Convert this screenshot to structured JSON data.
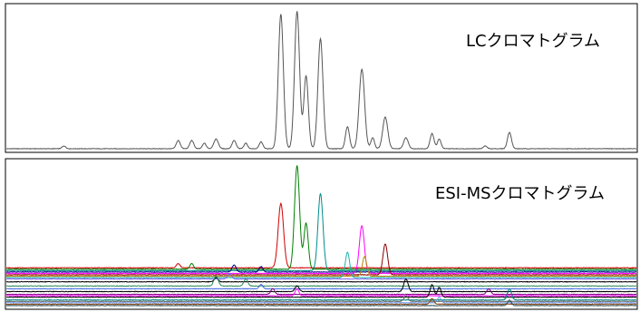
{
  "chart_data": [
    {
      "type": "line",
      "title": "LCクロマトグラム",
      "xlabel": "",
      "ylabel": "",
      "grid": false,
      "color": "#555555",
      "baseline": 0.02,
      "ylim": [
        0,
        1.05
      ],
      "xlim": [
        0,
        700
      ],
      "peaks": [
        {
          "x": 64,
          "h": 0.02,
          "w": 2.0
        },
        {
          "x": 191,
          "h": 0.06,
          "w": 2.2
        },
        {
          "x": 206,
          "h": 0.06,
          "w": 2.2
        },
        {
          "x": 220,
          "h": 0.04,
          "w": 2.0
        },
        {
          "x": 233,
          "h": 0.07,
          "w": 2.5
        },
        {
          "x": 253,
          "h": 0.06,
          "w": 2.2
        },
        {
          "x": 266,
          "h": 0.04,
          "w": 2.0
        },
        {
          "x": 283,
          "h": 0.05,
          "w": 2.0
        },
        {
          "x": 305,
          "h": 0.98,
          "w": 2.8
        },
        {
          "x": 323,
          "h": 1.0,
          "w": 2.8
        },
        {
          "x": 333,
          "h": 0.53,
          "w": 2.5
        },
        {
          "x": 349,
          "h": 0.8,
          "w": 2.8
        },
        {
          "x": 379,
          "h": 0.16,
          "w": 2.2
        },
        {
          "x": 395,
          "h": 0.58,
          "w": 3.0
        },
        {
          "x": 407,
          "h": 0.08,
          "w": 2.0
        },
        {
          "x": 421,
          "h": 0.23,
          "w": 2.8
        },
        {
          "x": 444,
          "h": 0.08,
          "w": 2.5
        },
        {
          "x": 473,
          "h": 0.11,
          "w": 2.2
        },
        {
          "x": 481,
          "h": 0.07,
          "w": 2.0
        },
        {
          "x": 532,
          "h": 0.02,
          "w": 2.0
        },
        {
          "x": 559,
          "h": 0.12,
          "w": 2.2
        }
      ]
    },
    {
      "type": "line",
      "title": "ESI-MSクロマトグラム",
      "xlabel": "",
      "ylabel": "",
      "grid": false,
      "xlim": [
        0,
        700
      ],
      "ylim": [
        0,
        1.05
      ],
      "series": [
        {
          "color": "#d00000",
          "offset": 0.29,
          "peaks": [
            {
              "x": 305,
              "h": 0.46,
              "w": 3.0
            },
            {
              "x": 191,
              "h": 0.03,
              "w": 2.0
            }
          ]
        },
        {
          "color": "#008000",
          "offset": 0.28,
          "peaks": [
            {
              "x": 323,
              "h": 0.74,
              "w": 2.8
            },
            {
              "x": 333,
              "h": 0.33,
              "w": 2.4
            },
            {
              "x": 206,
              "h": 0.04,
              "w": 2.0
            }
          ]
        },
        {
          "color": "#008b8b",
          "offset": 0.27,
          "peaks": [
            {
              "x": 349,
              "h": 0.55,
              "w": 2.8
            }
          ]
        },
        {
          "color": "#000080",
          "offset": 0.26,
          "peaks": [
            {
              "x": 253,
              "h": 0.05,
              "w": 2.2
            },
            {
              "x": 283,
              "h": 0.04,
              "w": 2.0
            }
          ]
        },
        {
          "color": "#ff00ff",
          "offset": 0.25,
          "peaks": [
            {
              "x": 395,
              "h": 0.34,
              "w": 2.8
            }
          ]
        },
        {
          "color": "#8b0000",
          "offset": 0.24,
          "peaks": [
            {
              "x": 421,
              "h": 0.22,
              "w": 2.6
            }
          ]
        },
        {
          "color": "#b8860b",
          "offset": 0.23,
          "peaks": [
            {
              "x": 398,
              "h": 0.14,
              "w": 2.4
            }
          ]
        },
        {
          "color": "#20b2aa",
          "offset": 0.22,
          "peaks": [
            {
              "x": 379,
              "h": 0.18,
              "w": 2.4
            }
          ]
        },
        {
          "color": "#7b68ee",
          "offset": 0.21,
          "peaks": [
            {
              "x": 248,
              "h": 0.04,
              "w": 2.2
            }
          ]
        },
        {
          "color": "#000000",
          "offset": 0.19,
          "peaks": [
            {
              "x": 233,
              "h": 0.03,
              "w": 2.0
            }
          ]
        },
        {
          "color": "#2e8b57",
          "offset": 0.16,
          "peaks": [
            {
              "x": 233,
              "h": 0.07,
              "w": 2.4
            },
            {
              "x": 266,
              "h": 0.05,
              "w": 2.2
            }
          ]
        },
        {
          "color": "#4169e1",
          "offset": 0.14,
          "peaks": [
            {
              "x": 283,
              "h": 0.03,
              "w": 2.0
            }
          ]
        },
        {
          "color": "#000000",
          "offset": 0.12,
          "peaks": [
            {
              "x": 323,
              "h": 0.04,
              "w": 2.2
            },
            {
              "x": 444,
              "h": 0.09,
              "w": 2.4
            }
          ]
        },
        {
          "color": "#800080",
          "offset": 0.1,
          "peaks": [
            {
              "x": 296,
              "h": 0.04,
              "w": 2.2
            },
            {
              "x": 536,
              "h": 0.04,
              "w": 2.2
            }
          ]
        },
        {
          "color": "#ff00ff",
          "offset": 0.09,
          "peaks": [
            {
              "x": 323,
              "h": 0.05,
              "w": 2.0
            }
          ]
        },
        {
          "color": "#000000",
          "offset": 0.08,
          "peaks": [
            {
              "x": 473,
              "h": 0.09,
              "w": 2.2
            },
            {
              "x": 481,
              "h": 0.07,
              "w": 2.0
            }
          ]
        },
        {
          "color": "#008080",
          "offset": 0.06,
          "peaks": [
            {
              "x": 559,
              "h": 0.08,
              "w": 2.2
            }
          ]
        },
        {
          "color": "#696969",
          "offset": 0.05,
          "peaks": [
            {
              "x": 444,
              "h": 0.04,
              "w": 2.2
            }
          ]
        },
        {
          "color": "#6495ed",
          "offset": 0.04,
          "peaks": [
            {
              "x": 481,
              "h": 0.04,
              "w": 2.0
            }
          ]
        },
        {
          "color": "#8b4513",
          "offset": 0.03,
          "peaks": [
            {
              "x": 473,
              "h": 0.04,
              "w": 2.0
            }
          ]
        },
        {
          "color": "#2f4f4f",
          "offset": 0.02,
          "peaks": [
            {
              "x": 559,
              "h": 0.04,
              "w": 2.0
            }
          ]
        }
      ]
    }
  ]
}
